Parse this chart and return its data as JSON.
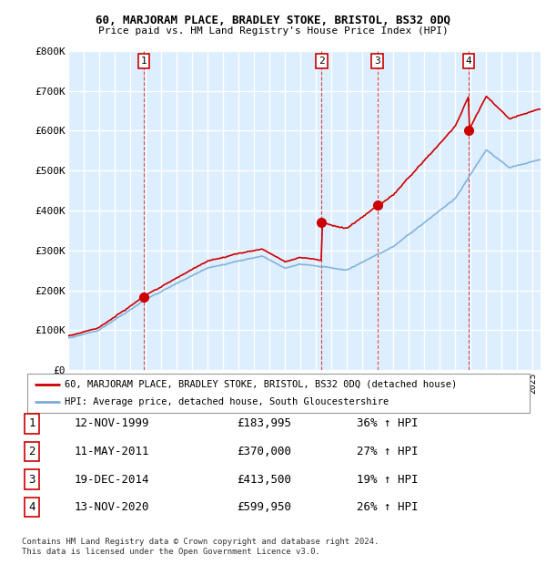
{
  "title1": "60, MARJORAM PLACE, BRADLEY STOKE, BRISTOL, BS32 0DQ",
  "title2": "Price paid vs. HM Land Registry's House Price Index (HPI)",
  "legend_line1": "60, MARJORAM PLACE, BRADLEY STOKE, BRISTOL, BS32 0DQ (detached house)",
  "legend_line2": "HPI: Average price, detached house, South Gloucestershire",
  "footer": "Contains HM Land Registry data © Crown copyright and database right 2024.\nThis data is licensed under the Open Government Licence v3.0.",
  "sales": [
    {
      "num": 1,
      "date": "12-NOV-1999",
      "price": 183995,
      "hpi_pct": "36% ↑ HPI",
      "year": 1999.87
    },
    {
      "num": 2,
      "date": "11-MAY-2011",
      "price": 370000,
      "hpi_pct": "27% ↑ HPI",
      "year": 2011.36
    },
    {
      "num": 3,
      "date": "19-DEC-2014",
      "price": 413500,
      "hpi_pct": "19% ↑ HPI",
      "year": 2014.96
    },
    {
      "num": 4,
      "date": "13-NOV-2020",
      "price": 599950,
      "hpi_pct": "26% ↑ HPI",
      "year": 2020.87
    }
  ],
  "hpi_color": "#7aadd4",
  "price_color": "#cc0000",
  "sale_marker_color": "#cc0000",
  "bg_color": "#ddeeff",
  "grid_color": "#ffffff",
  "dashed_color": "#cc0000",
  "ylim": [
    0,
    800000
  ],
  "xlim_start": 1995.0,
  "xlim_end": 2025.5
}
